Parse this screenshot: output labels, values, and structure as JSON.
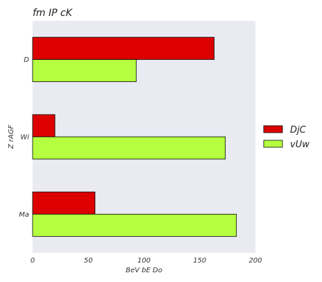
{
  "chart_data": {
    "type": "bar",
    "orientation": "horizontal",
    "title": "fm  IP cK",
    "xlabel": "BeV bE Do",
    "ylabel": "Z rAGF",
    "categories": [
      "D",
      "Wi",
      "Ma"
    ],
    "series": [
      {
        "name": "DjC",
        "values": [
          163,
          20,
          56
        ],
        "color": "#dd0000"
      },
      {
        "name": "vUw",
        "values": [
          93,
          173,
          183
        ],
        "color": "#b5ff40"
      }
    ],
    "xlim": [
      0,
      200
    ],
    "xticks": [
      0,
      50,
      100,
      150,
      200
    ],
    "grid": false,
    "legend_position": "right",
    "plot_background": "#eaeaf2"
  }
}
